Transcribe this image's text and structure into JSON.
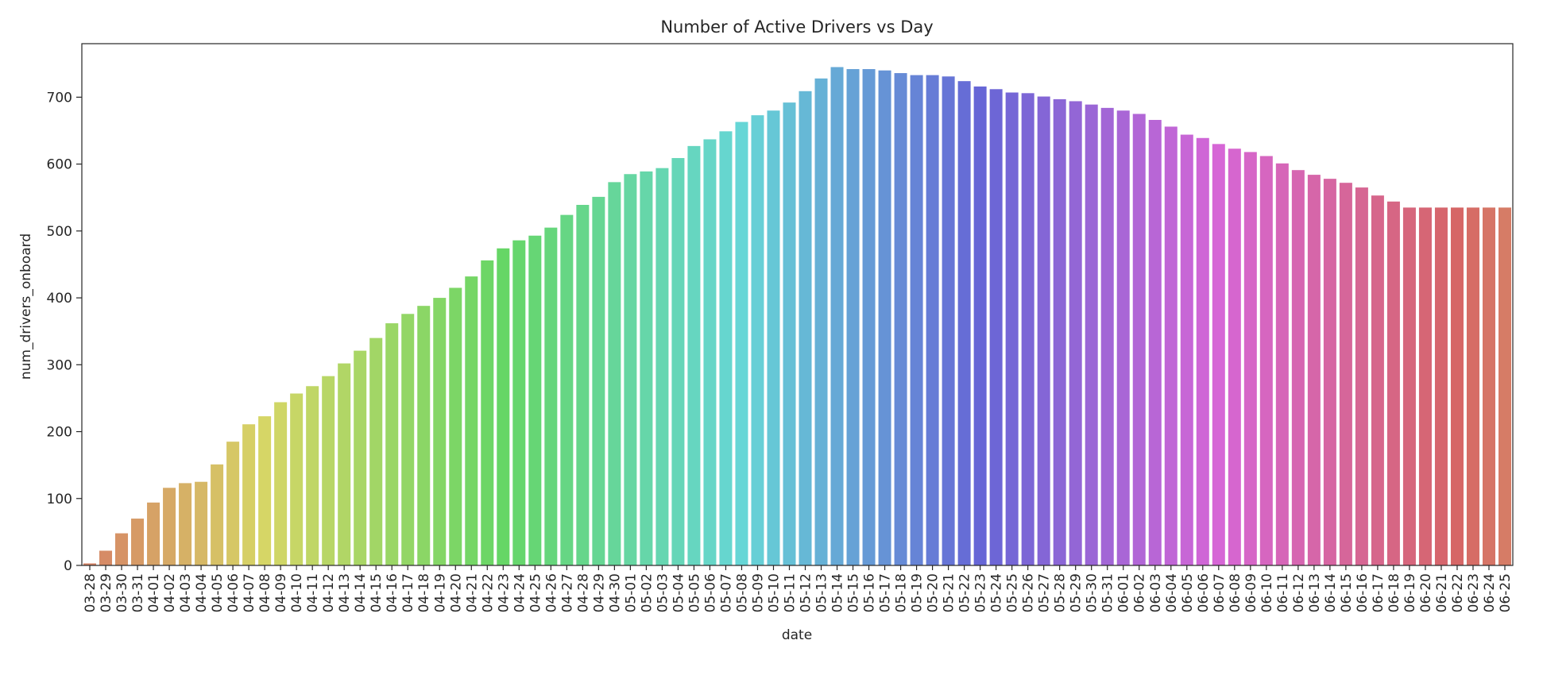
{
  "chart_data": {
    "type": "bar",
    "title": "Number of Active Drivers vs Day",
    "xlabel": "date",
    "ylabel": "num_drivers_onboard",
    "ylim": [
      0,
      780
    ],
    "yticks": [
      0,
      100,
      200,
      300,
      400,
      500,
      600,
      700
    ],
    "grid": false,
    "legend": "none",
    "palette": "husl",
    "categories": [
      "03-28",
      "03-29",
      "03-30",
      "03-31",
      "04-01",
      "04-02",
      "04-03",
      "04-04",
      "04-05",
      "04-06",
      "04-07",
      "04-08",
      "04-09",
      "04-10",
      "04-11",
      "04-12",
      "04-13",
      "04-14",
      "04-15",
      "04-16",
      "04-17",
      "04-18",
      "04-19",
      "04-20",
      "04-21",
      "04-22",
      "04-23",
      "04-24",
      "04-25",
      "04-26",
      "04-27",
      "04-28",
      "04-29",
      "04-30",
      "05-01",
      "05-02",
      "05-03",
      "05-04",
      "05-05",
      "05-06",
      "05-07",
      "05-08",
      "05-09",
      "05-10",
      "05-11",
      "05-12",
      "05-13",
      "05-14",
      "05-15",
      "05-16",
      "05-17",
      "05-18",
      "05-19",
      "05-20",
      "05-21",
      "05-22",
      "05-23",
      "05-24",
      "05-25",
      "05-26",
      "05-27",
      "05-28",
      "05-29",
      "05-30",
      "05-31",
      "06-01",
      "06-02",
      "06-03",
      "06-04",
      "06-05",
      "06-06",
      "06-07",
      "06-08",
      "06-09",
      "06-10",
      "06-11",
      "06-12",
      "06-13",
      "06-14",
      "06-15",
      "06-16",
      "06-17",
      "06-18",
      "06-19",
      "06-20",
      "06-21",
      "06-22",
      "06-23",
      "06-24",
      "06-25"
    ],
    "values": [
      3,
      22,
      48,
      70,
      94,
      116,
      123,
      125,
      151,
      185,
      211,
      223,
      244,
      257,
      268,
      283,
      302,
      321,
      340,
      362,
      376,
      388,
      400,
      415,
      432,
      456,
      474,
      486,
      493,
      505,
      524,
      539,
      551,
      573,
      585,
      589,
      594,
      609,
      627,
      637,
      649,
      663,
      673,
      680,
      692,
      709,
      728,
      745,
      742,
      742,
      740,
      736,
      733,
      733,
      731,
      724,
      716,
      712,
      707,
      706,
      701,
      697,
      694,
      689,
      684,
      680,
      675,
      666,
      656,
      644,
      639,
      630,
      623,
      618,
      612,
      601,
      591,
      584,
      578,
      572,
      565,
      553,
      544,
      535,
      535,
      535,
      535,
      535,
      535,
      535
    ]
  }
}
